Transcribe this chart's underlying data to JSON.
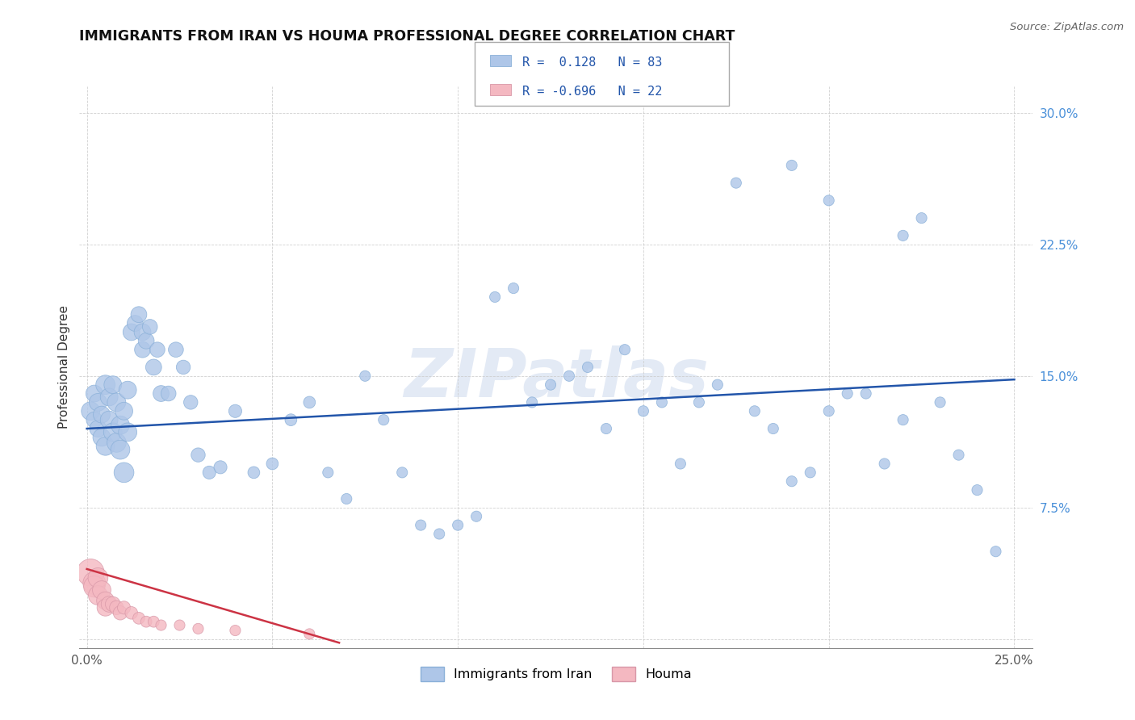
{
  "title": "IMMIGRANTS FROM IRAN VS HOUMA PROFESSIONAL DEGREE CORRELATION CHART",
  "source": "Source: ZipAtlas.com",
  "ylabel": "Professional Degree",
  "xlabel": "",
  "xlim": [
    -0.002,
    0.255
  ],
  "ylim": [
    -0.005,
    0.315
  ],
  "xticks": [
    0.0,
    0.05,
    0.1,
    0.15,
    0.2,
    0.25
  ],
  "yticks": [
    0.0,
    0.075,
    0.15,
    0.225,
    0.3
  ],
  "xticklabels_bottom": [
    "0.0%",
    "",
    "",
    "",
    "",
    "25.0%"
  ],
  "yticklabels": [
    "",
    "7.5%",
    "15.0%",
    "22.5%",
    "30.0%"
  ],
  "blue_color": "#aec6e8",
  "pink_color": "#f4b8c1",
  "blue_line_color": "#2255aa",
  "pink_line_color": "#cc3344",
  "watermark": "ZIPatlas",
  "blue_R": 0.128,
  "pink_R": -0.696,
  "blue_N": 83,
  "pink_N": 22,
  "blue_scatter_x": [
    0.001,
    0.002,
    0.002,
    0.003,
    0.003,
    0.004,
    0.004,
    0.005,
    0.005,
    0.006,
    0.006,
    0.007,
    0.007,
    0.008,
    0.008,
    0.009,
    0.009,
    0.01,
    0.01,
    0.011,
    0.011,
    0.012,
    0.013,
    0.014,
    0.015,
    0.015,
    0.016,
    0.017,
    0.018,
    0.019,
    0.02,
    0.022,
    0.024,
    0.026,
    0.028,
    0.03,
    0.033,
    0.036,
    0.04,
    0.045,
    0.05,
    0.055,
    0.06,
    0.065,
    0.07,
    0.075,
    0.08,
    0.085,
    0.09,
    0.095,
    0.1,
    0.105,
    0.11,
    0.115,
    0.12,
    0.125,
    0.13,
    0.135,
    0.14,
    0.145,
    0.15,
    0.155,
    0.16,
    0.165,
    0.17,
    0.175,
    0.18,
    0.185,
    0.19,
    0.195,
    0.2,
    0.205,
    0.21,
    0.215,
    0.22,
    0.225,
    0.23,
    0.235,
    0.24,
    0.245,
    0.19,
    0.2,
    0.22
  ],
  "blue_scatter_y": [
    0.13,
    0.14,
    0.125,
    0.135,
    0.12,
    0.115,
    0.128,
    0.145,
    0.11,
    0.138,
    0.125,
    0.118,
    0.145,
    0.112,
    0.135,
    0.108,
    0.122,
    0.095,
    0.13,
    0.118,
    0.142,
    0.175,
    0.18,
    0.185,
    0.175,
    0.165,
    0.17,
    0.178,
    0.155,
    0.165,
    0.14,
    0.14,
    0.165,
    0.155,
    0.135,
    0.105,
    0.095,
    0.098,
    0.13,
    0.095,
    0.1,
    0.125,
    0.135,
    0.095,
    0.08,
    0.15,
    0.125,
    0.095,
    0.065,
    0.06,
    0.065,
    0.07,
    0.195,
    0.2,
    0.135,
    0.145,
    0.15,
    0.155,
    0.12,
    0.165,
    0.13,
    0.135,
    0.1,
    0.135,
    0.145,
    0.26,
    0.13,
    0.12,
    0.09,
    0.095,
    0.13,
    0.14,
    0.14,
    0.1,
    0.125,
    0.24,
    0.135,
    0.105,
    0.085,
    0.05,
    0.27,
    0.25,
    0.23
  ],
  "blue_scatter_sizes": [
    60,
    50,
    45,
    55,
    50,
    55,
    50,
    65,
    60,
    55,
    55,
    60,
    55,
    65,
    60,
    65,
    60,
    70,
    55,
    60,
    55,
    50,
    45,
    45,
    50,
    45,
    45,
    40,
    45,
    40,
    45,
    40,
    40,
    35,
    35,
    35,
    30,
    30,
    30,
    25,
    25,
    25,
    25,
    20,
    20,
    20,
    20,
    20,
    20,
    20,
    20,
    20,
    20,
    20,
    20,
    20,
    20,
    20,
    20,
    20,
    20,
    20,
    20,
    20,
    20,
    20,
    20,
    20,
    20,
    20,
    20,
    20,
    20,
    20,
    20,
    20,
    20,
    20,
    20,
    20,
    20,
    20,
    20
  ],
  "pink_scatter_x": [
    0.001,
    0.002,
    0.002,
    0.003,
    0.003,
    0.004,
    0.005,
    0.005,
    0.006,
    0.007,
    0.008,
    0.009,
    0.01,
    0.012,
    0.014,
    0.016,
    0.018,
    0.02,
    0.025,
    0.03,
    0.04,
    0.06
  ],
  "pink_scatter_y": [
    0.038,
    0.032,
    0.03,
    0.035,
    0.025,
    0.028,
    0.022,
    0.018,
    0.02,
    0.02,
    0.018,
    0.015,
    0.018,
    0.015,
    0.012,
    0.01,
    0.01,
    0.008,
    0.008,
    0.006,
    0.005,
    0.003
  ],
  "pink_scatter_sizes": [
    130,
    90,
    80,
    70,
    65,
    60,
    55,
    50,
    45,
    40,
    35,
    35,
    30,
    28,
    25,
    22,
    22,
    20,
    20,
    20,
    20,
    20
  ],
  "blue_trend_x": [
    0.0,
    0.25
  ],
  "blue_trend_y": [
    0.12,
    0.148
  ],
  "pink_trend_x": [
    0.0,
    0.068
  ],
  "pink_trend_y": [
    0.04,
    -0.002
  ]
}
